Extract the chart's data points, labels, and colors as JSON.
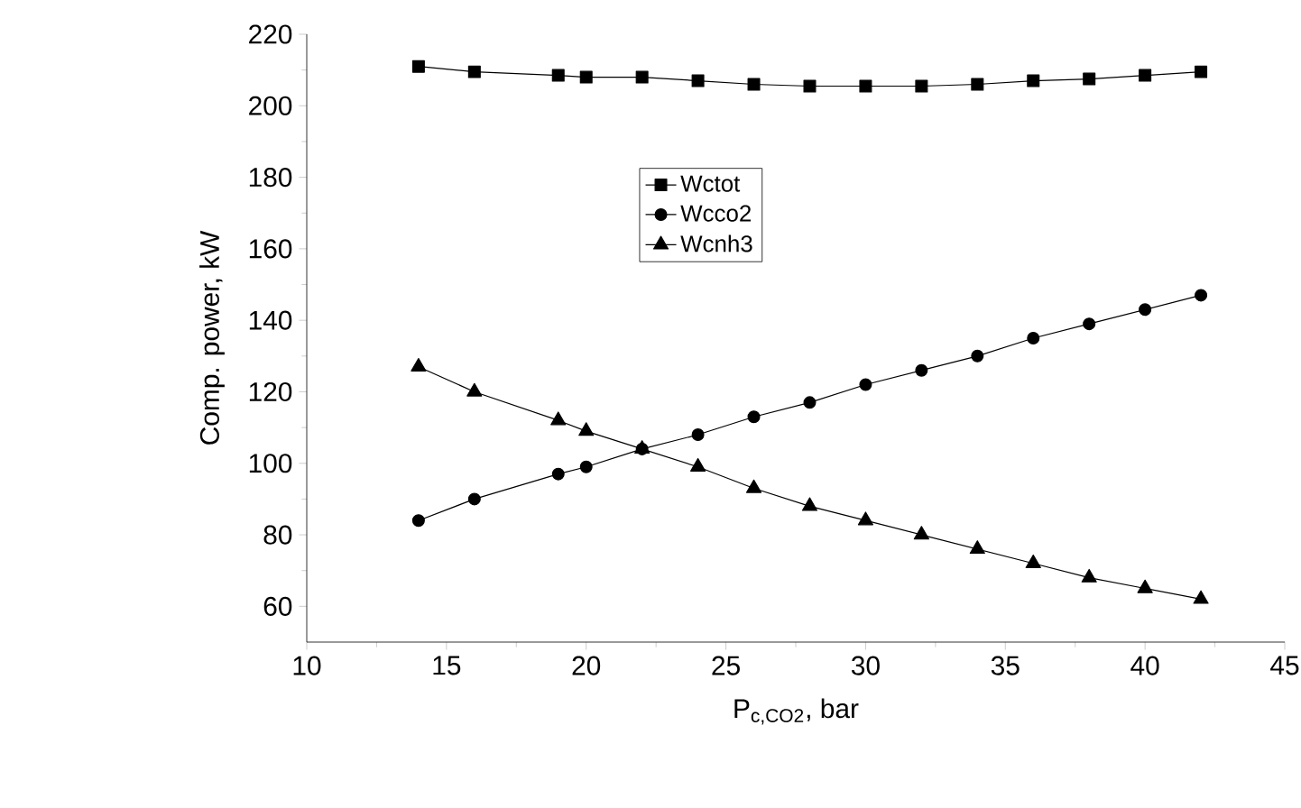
{
  "chart_data": {
    "type": "line",
    "xlabel": "P$_{c,CO2}$, bar",
    "ylabel": "Comp. power, kW",
    "x": [
      14,
      16,
      19,
      20,
      22,
      24,
      26,
      28,
      30,
      32,
      34,
      36,
      38,
      40,
      42
    ],
    "series": [
      {
        "name": "Wctot",
        "color": "#000000",
        "marker": "square",
        "values": [
          211,
          209.5,
          208.5,
          208,
          208,
          207,
          206,
          205.5,
          205.5,
          205.5,
          206,
          207,
          207.5,
          208.5,
          209.5
        ]
      },
      {
        "name": "Wcco2",
        "color": "#000000",
        "marker": "circle",
        "values": [
          84,
          90,
          97,
          99,
          104,
          108,
          113,
          117,
          122,
          126,
          130,
          135,
          139,
          143,
          147
        ]
      },
      {
        "name": "Wcnh3",
        "color": "#000000",
        "marker": "triangle",
        "values": [
          127,
          120,
          112,
          109,
          104,
          99,
          93,
          88,
          84,
          80,
          76,
          72,
          68,
          65,
          62
        ]
      }
    ],
    "xlim": [
      10,
      45
    ],
    "xticks": [
      10,
      15,
      20,
      25,
      30,
      35,
      40,
      45
    ],
    "ylim": [
      50,
      220
    ],
    "yticks": [
      60,
      80,
      100,
      120,
      140,
      160,
      180,
      200,
      220
    ],
    "grid": false,
    "legend": "top",
    "line_style": "solid"
  }
}
